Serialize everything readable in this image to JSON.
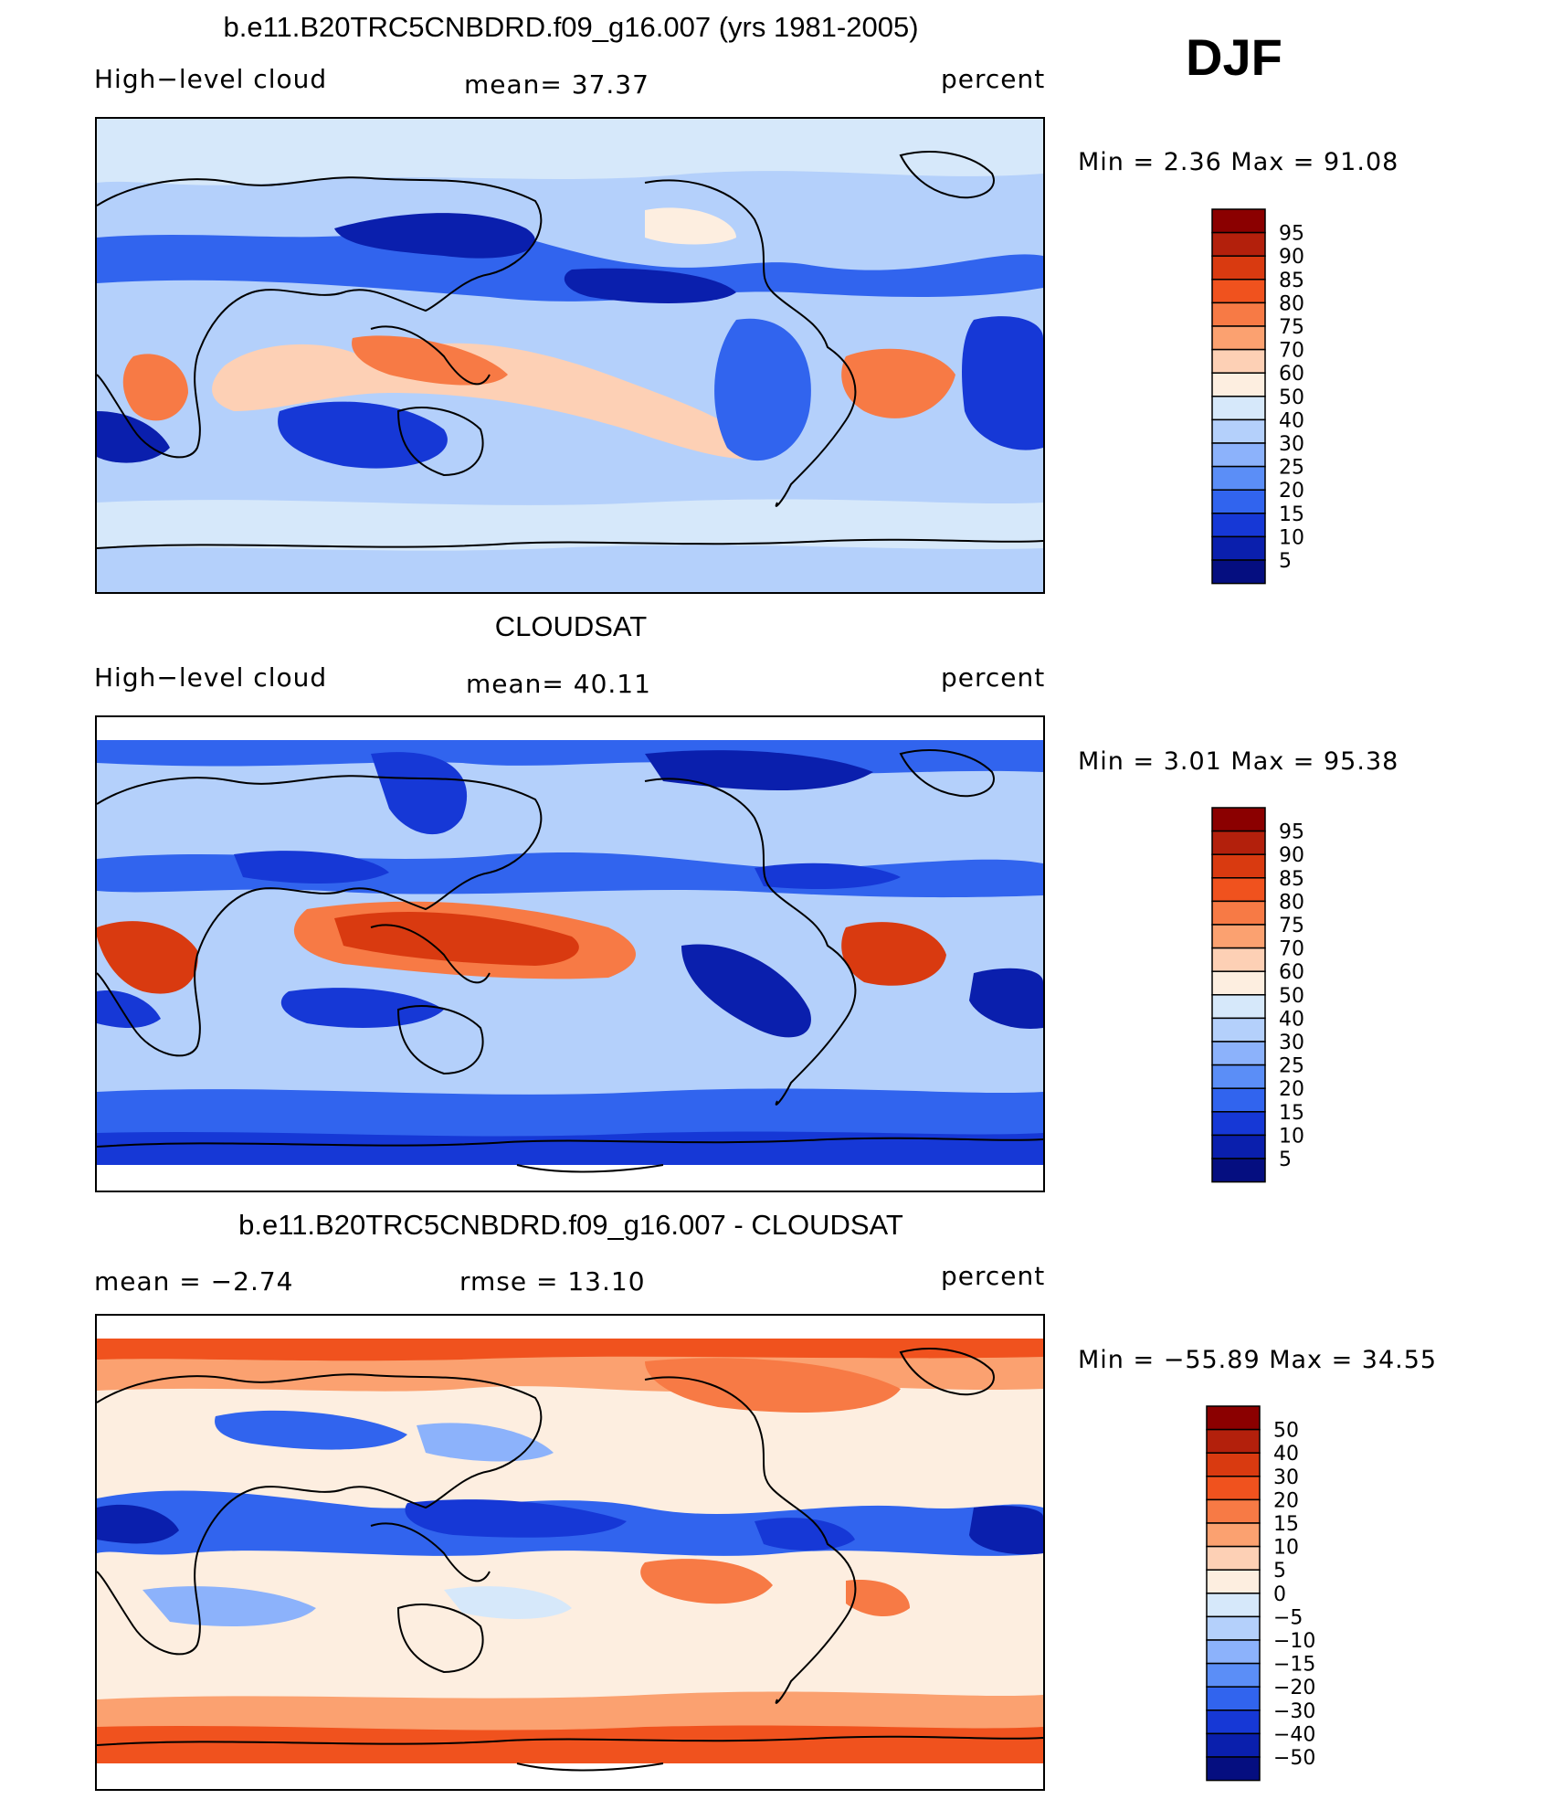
{
  "season": "DJF",
  "panels": [
    {
      "title": "b.e11.B20TRC5CNBDRD.f09_g16.007 (yrs 1981-2005)",
      "left_label": "High−level cloud",
      "center_label": "mean=   37.37",
      "right_label": "percent",
      "minmax": "Min =    2.36  Max =   91.08",
      "legend_labels": [
        "95",
        "90",
        "85",
        "80",
        "75",
        "70",
        "60",
        "50",
        "40",
        "30",
        "25",
        "20",
        "15",
        "10",
        "5"
      ],
      "legend_colors": [
        "#8b0000",
        "#b3200c",
        "#d93a10",
        "#f0521e",
        "#f77a45",
        "#fba170",
        "#fdd0b5",
        "#fdeee0",
        "#d6e8fa",
        "#b4d0fb",
        "#8cb2fb",
        "#5b8ef7",
        "#3164ee",
        "#1638d6",
        "#0a1fad",
        "#050e80"
      ]
    },
    {
      "title": "CLOUDSAT",
      "left_label": "High−level cloud",
      "center_label": "mean=   40.11",
      "right_label": "percent",
      "minmax": "Min =    3.01  Max =   95.38",
      "legend_labels": [
        "95",
        "90",
        "85",
        "80",
        "75",
        "70",
        "60",
        "50",
        "40",
        "30",
        "25",
        "20",
        "15",
        "10",
        "5"
      ],
      "legend_colors": [
        "#8b0000",
        "#b3200c",
        "#d93a10",
        "#f0521e",
        "#f77a45",
        "#fba170",
        "#fdd0b5",
        "#fdeee0",
        "#d6e8fa",
        "#b4d0fb",
        "#8cb2fb",
        "#5b8ef7",
        "#3164ee",
        "#1638d6",
        "#0a1fad",
        "#050e80"
      ]
    },
    {
      "title": "b.e11.B20TRC5CNBDRD.f09_g16.007 - CLOUDSAT",
      "left_label": "mean =   −2.74",
      "center_label": "rmse =   13.10",
      "right_label": "percent",
      "minmax": "Min = −55.89  Max =   34.55",
      "legend_labels": [
        "50",
        "40",
        "30",
        "20",
        "15",
        "10",
        "5",
        "0",
        "−5",
        "−10",
        "−15",
        "−20",
        "−30",
        "−40",
        "−50"
      ],
      "legend_colors": [
        "#8b0000",
        "#b3200c",
        "#d93a10",
        "#f0521e",
        "#f77a45",
        "#fba170",
        "#fdd0b5",
        "#fdeee0",
        "#d6e8fa",
        "#b4d0fb",
        "#8cb2fb",
        "#5b8ef7",
        "#3164ee",
        "#1638d6",
        "#0a1fad",
        "#050e80"
      ]
    }
  ]
}
